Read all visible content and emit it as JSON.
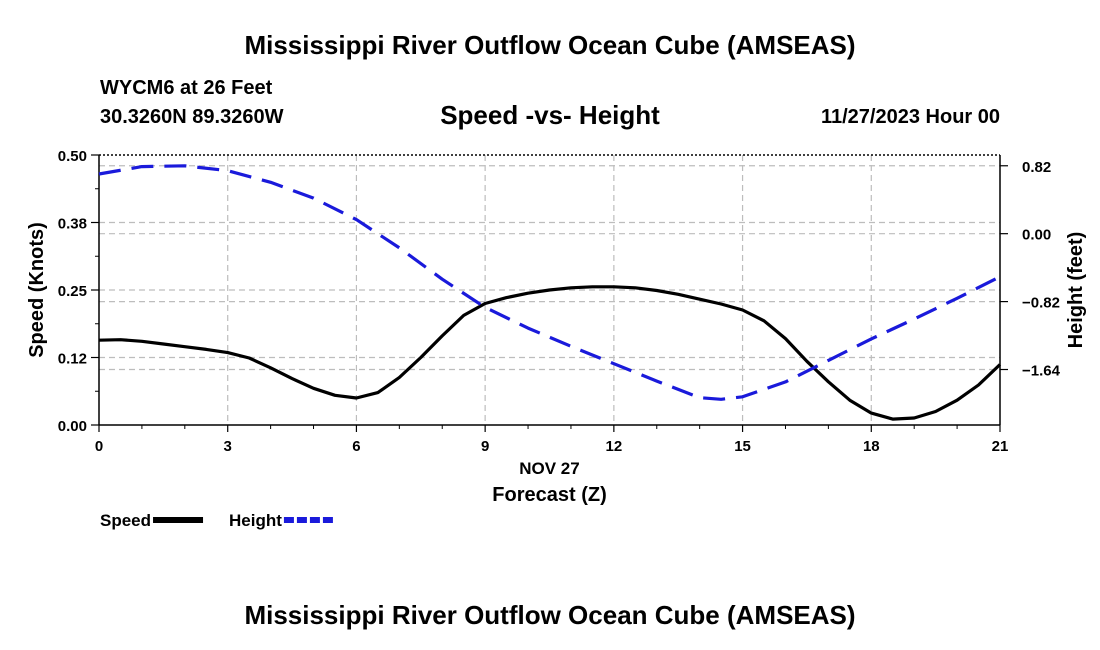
{
  "page": {
    "title": "Mississippi River Outflow Ocean Cube (AMSEAS)",
    "station": "WYCM6 at 26 Feet",
    "coords": "30.3260N  89.3260W",
    "subtitle": "Speed -vs- Height",
    "datetime": "11/27/2023 Hour 00",
    "bottom_title": "Mississippi River Outflow Ocean Cube (AMSEAS)"
  },
  "chart_data": {
    "type": "line",
    "title": "Speed -vs- Height",
    "xlabel": "Forecast (Z)",
    "xdate_label": "NOV 27",
    "xlim": [
      0,
      21
    ],
    "xticks": [
      0,
      3,
      6,
      9,
      12,
      15,
      18,
      21
    ],
    "ylabel_left": "Speed (Knots)",
    "ylim_left": [
      0,
      0.5
    ],
    "yticks_left": [
      0.0,
      0.125,
      0.25,
      0.375,
      0.5
    ],
    "ytick_labels_left": [
      "0.00",
      "0.12",
      "0.25",
      "0.38",
      "0.50"
    ],
    "ylabel_right": "Height (feet)",
    "ylim_right": [
      -2.31,
      0.95
    ],
    "yticks_right": [
      0.82,
      0.0,
      -0.82,
      -1.64
    ],
    "ytick_labels_right": [
      "0.82",
      "0.00",
      "−0.82",
      "−1.64"
    ],
    "grid": true,
    "legend": "bottom-left",
    "series": [
      {
        "name": "Speed",
        "axis": "left",
        "color": "#000000",
        "style": "solid",
        "x": [
          0,
          0.5,
          1,
          1.5,
          2,
          2.5,
          3,
          3.5,
          4,
          4.5,
          5,
          5.5,
          6,
          6.5,
          7,
          7.5,
          8,
          8.5,
          9,
          9.5,
          10,
          10.5,
          11,
          11.5,
          12,
          12.5,
          13,
          13.5,
          14,
          14.5,
          15,
          15.5,
          16,
          16.5,
          17,
          17.5,
          18,
          18.5,
          19,
          19.5,
          20,
          20.5,
          21
        ],
        "values": [
          0.157,
          0.158,
          0.155,
          0.15,
          0.145,
          0.14,
          0.134,
          0.124,
          0.106,
          0.086,
          0.068,
          0.055,
          0.05,
          0.06,
          0.088,
          0.125,
          0.165,
          0.203,
          0.225,
          0.236,
          0.244,
          0.25,
          0.254,
          0.256,
          0.256,
          0.254,
          0.249,
          0.242,
          0.233,
          0.224,
          0.213,
          0.193,
          0.16,
          0.118,
          0.08,
          0.046,
          0.022,
          0.011,
          0.013,
          0.025,
          0.046,
          0.074,
          0.112
        ]
      },
      {
        "name": "Height",
        "axis": "right",
        "color": "#1a1adb",
        "style": "dashed",
        "x": [
          0,
          1,
          2,
          3,
          4,
          5,
          6,
          7,
          8,
          9,
          10,
          11,
          12,
          13,
          14,
          14.5,
          15,
          16,
          17,
          18,
          19,
          20,
          21
        ],
        "values": [
          0.72,
          0.81,
          0.82,
          0.76,
          0.62,
          0.43,
          0.17,
          -0.17,
          -0.55,
          -0.89,
          -1.14,
          -1.36,
          -1.57,
          -1.78,
          -1.98,
          -2.0,
          -1.97,
          -1.79,
          -1.53,
          -1.27,
          -1.03,
          -0.78,
          -0.52
        ]
      }
    ]
  }
}
